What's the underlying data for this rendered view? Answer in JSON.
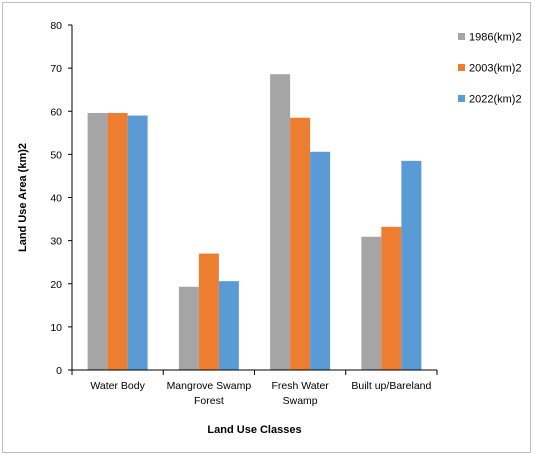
{
  "chart_data": {
    "type": "bar",
    "categories": [
      [
        "Water Body"
      ],
      [
        "Mangrove Swamp",
        "Forest"
      ],
      [
        "Fresh Water",
        "Swamp"
      ],
      [
        "Built up/Bareland"
      ]
    ],
    "series": [
      {
        "name": "1986(km)2",
        "color": "#a5a5a5",
        "values": [
          59.6,
          19.3,
          68.6,
          30.9
        ]
      },
      {
        "name": "2003(km)2",
        "color": "#ed7d31",
        "values": [
          59.6,
          27.0,
          58.5,
          33.2
        ]
      },
      {
        "name": "2022(km)2",
        "color": "#5b9bd5",
        "values": [
          59.0,
          20.6,
          50.6,
          48.5
        ]
      }
    ],
    "xlabel": "Land Use Classes",
    "ylabel": "Land Use Area (km)2",
    "ylim": [
      0,
      80
    ],
    "yticks": [
      0,
      10,
      20,
      30,
      40,
      50,
      60,
      70,
      80
    ],
    "grid": false,
    "legend_position": "right"
  }
}
